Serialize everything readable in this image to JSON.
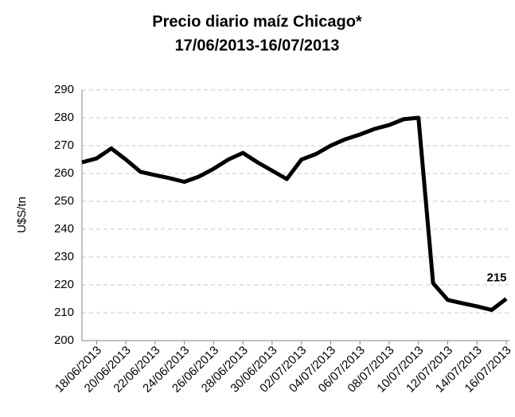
{
  "chart_data": {
    "type": "line",
    "title": [
      "Precio diario maíz Chicago*",
      "17/06/2013-16/07/2013"
    ],
    "y_label": "U$S/tn",
    "categories": [
      null,
      "18/06/2013",
      null,
      "20/06/2013",
      null,
      "22/06/2013",
      null,
      "24/06/2013",
      null,
      "26/06/2013",
      null,
      "28/06/2013",
      null,
      "30/06/2013",
      null,
      "02/07/2013",
      null,
      "04/07/2013",
      null,
      "06/07/2013",
      null,
      "08/07/2013",
      null,
      "10/07/2013",
      null,
      "12/07/2013",
      null,
      "14/07/2013",
      null,
      "16/07/2013"
    ],
    "series": [
      {
        "name": "Precio",
        "color": "#000000",
        "values": [
          264,
          265.4,
          269,
          265,
          260.6,
          259.4,
          258.3,
          257,
          258.9,
          261.7,
          265,
          267.4,
          264,
          261,
          258,
          265,
          267,
          270,
          272.3,
          274,
          276,
          277.4,
          279.5,
          280,
          220.6,
          214.6,
          213.4,
          212.3,
          211,
          215
        ]
      }
    ],
    "annotations": [
      {
        "text": "215"
      }
    ],
    "ylim": [
      200,
      290
    ],
    "yticks": [
      200,
      210,
      220,
      230,
      240,
      250,
      260,
      270,
      280,
      290
    ],
    "grid": true
  }
}
